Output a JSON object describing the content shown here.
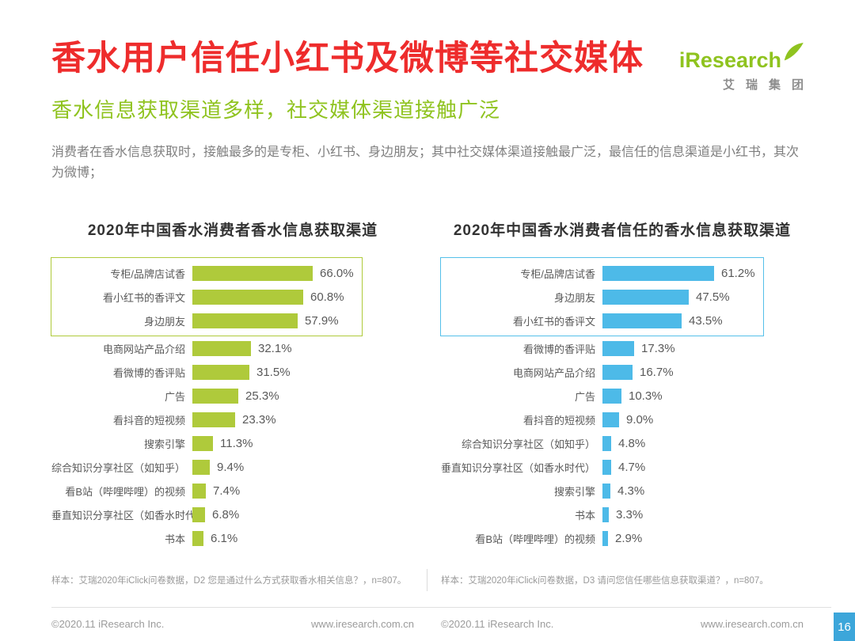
{
  "page": {
    "title": "香水用户信任小红书及微博等社交媒体",
    "subtitle": "香水信息获取渠道多样，社交媒体渠道接触广泛",
    "description": "消费者在香水信息获取时，接触最多的是专柜、小红书、身边朋友；其中社交媒体渠道接触最广泛，最信任的信息渠道是小红书，其次为微博；",
    "page_number": "16"
  },
  "logo": {
    "brand": "iResearch",
    "brand_cn": "艾瑞集团"
  },
  "colors": {
    "title_red": "#EE2C2C",
    "brand_green": "#8FC31F",
    "bar_green": "#AFCA3B",
    "bar_blue": "#4DBAE8",
    "page_box_blue": "#3CA6DA"
  },
  "chart_data": [
    {
      "type": "bar",
      "orientation": "horizontal",
      "title": "2020年中国香水消费者香水信息获取渠道",
      "unit": "%",
      "categories": [
        "专柜/品牌店试香",
        "看小红书的香评文",
        "身边朋友",
        "电商网站产品介绍",
        "看微博的香评贴",
        "广告",
        "看抖音的短视频",
        "搜索引擎",
        "综合知识分享社区（如知乎）",
        "看B站（哔哩哔哩）的视频",
        "垂直知识分享社区（如香水时代）",
        "书本"
      ],
      "values": [
        66.0,
        60.8,
        57.9,
        32.1,
        31.5,
        25.3,
        23.3,
        11.3,
        9.4,
        7.4,
        6.8,
        6.1
      ],
      "xlim": [
        0,
        70
      ],
      "bar_color": "#AFCA3B",
      "highlight_top_n": 3,
      "highlight_color": "#AFCA3B",
      "legend": [],
      "grid": false,
      "note": "样本：艾瑞2020年iClick问卷数据，D2 您是通过什么方式获取香水相关信息？，n=807。"
    },
    {
      "type": "bar",
      "orientation": "horizontal",
      "title": "2020年中国香水消费者信任的香水信息获取渠道",
      "unit": "%",
      "categories": [
        "专柜/品牌店试香",
        "身边朋友",
        "看小红书的香评文",
        "看微博的香评贴",
        "电商网站产品介绍",
        "广告",
        "看抖音的短视频",
        "综合知识分享社区（如知乎）",
        "垂直知识分享社区（如香水时代）",
        "搜索引擎",
        "书本",
        "看B站（哔哩哔哩）的视频"
      ],
      "values": [
        61.2,
        47.5,
        43.5,
        17.3,
        16.7,
        10.3,
        9.0,
        4.8,
        4.7,
        4.3,
        3.3,
        2.9
      ],
      "xlim": [
        0,
        70
      ],
      "bar_color": "#4DBAE8",
      "highlight_top_n": 3,
      "highlight_color": "#55C0E9",
      "legend": [],
      "grid": false,
      "note": "样本：艾瑞2020年iClick问卷数据，D3 请问您信任哪些信息获取渠道？，n=807。"
    }
  ],
  "footer": {
    "copyright_left": "©2020.11 iResearch Inc.",
    "website_left": "www.iresearch.com.cn",
    "copyright_right": "©2020.11 iResearch Inc.",
    "website_right": "www.iresearch.com.cn"
  }
}
